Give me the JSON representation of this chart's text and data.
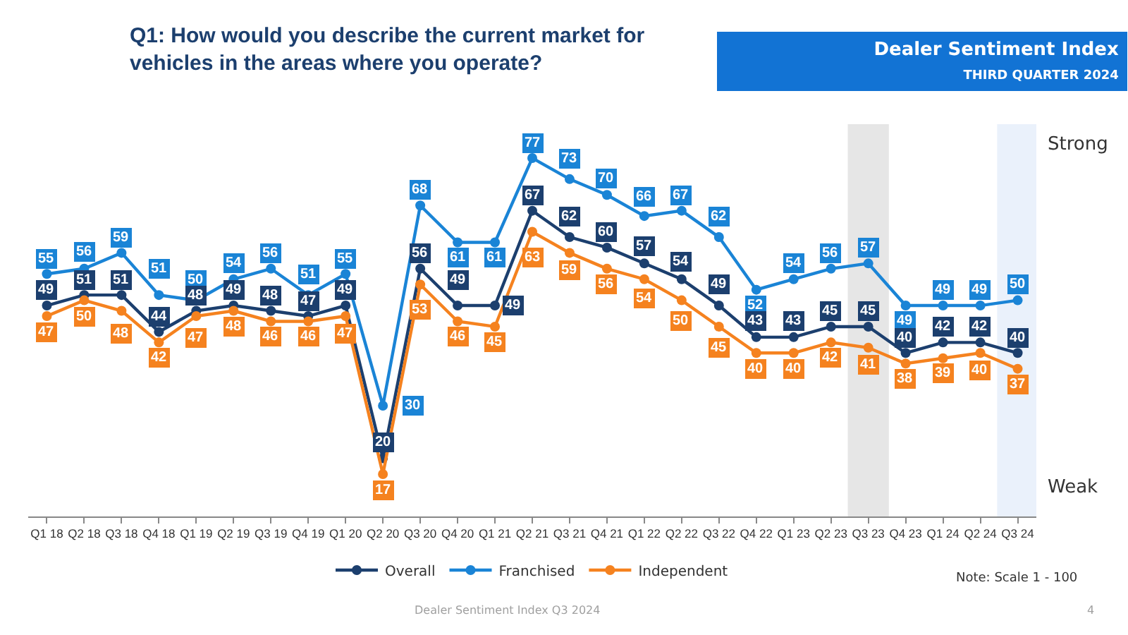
{
  "chart_data": {
    "type": "line",
    "title": "Q1: How would you describe the current market for vehicles in the areas where you operate?",
    "subtitle": "Dealer Sentiment Index",
    "annotations": [
      "THIRD QUARTER 2024",
      "Strong",
      "Weak",
      "Note: Scale 1 - 100",
      "Dealer Sentiment Index Q3 2024",
      "4"
    ],
    "categories": [
      "Q1 18",
      "Q2 18",
      "Q3 18",
      "Q4 18",
      "Q1 19",
      "Q2 19",
      "Q3 19",
      "Q4 19",
      "Q1 20",
      "Q2 20",
      "Q3 20",
      "Q4 20",
      "Q1 21",
      "Q2 21",
      "Q3 21",
      "Q4 21",
      "Q1 22",
      "Q2 22",
      "Q3 22",
      "Q4 22",
      "Q1 23",
      "Q2 23",
      "Q3 23",
      "Q4 23",
      "Q1 24",
      "Q2 24",
      "Q3 24"
    ],
    "series": [
      {
        "name": "Overall",
        "color": "#1c3f6e",
        "values": [
          49,
          51,
          51,
          44,
          48,
          49,
          48,
          47,
          49,
          20,
          56,
          49,
          49,
          67,
          62,
          60,
          57,
          54,
          49,
          43,
          43,
          45,
          45,
          40,
          42,
          42,
          40
        ]
      },
      {
        "name": "Franchised",
        "color": "#1a84d6",
        "values": [
          55,
          56,
          59,
          51,
          50,
          54,
          56,
          51,
          55,
          30,
          68,
          61,
          61,
          77,
          73,
          70,
          66,
          67,
          62,
          52,
          54,
          56,
          57,
          49,
          49,
          49,
          50
        ]
      },
      {
        "name": "Independent",
        "color": "#f5821f",
        "values": [
          47,
          50,
          48,
          42,
          47,
          48,
          46,
          46,
          47,
          17,
          53,
          46,
          45,
          63,
          59,
          56,
          54,
          50,
          45,
          40,
          40,
          42,
          41,
          38,
          39,
          40,
          37
        ]
      }
    ],
    "bands": [
      {
        "axis": "x",
        "from": "Q3 23",
        "to": "Q3 23",
        "color": "#e6e6e6"
      },
      {
        "axis": "x",
        "from": "Q3 24",
        "to": "Q3 24",
        "color": "#eaf1fb"
      }
    ],
    "data_labels": true,
    "marker": "circle",
    "line_style": "solid",
    "legend": "bottom"
  }
}
